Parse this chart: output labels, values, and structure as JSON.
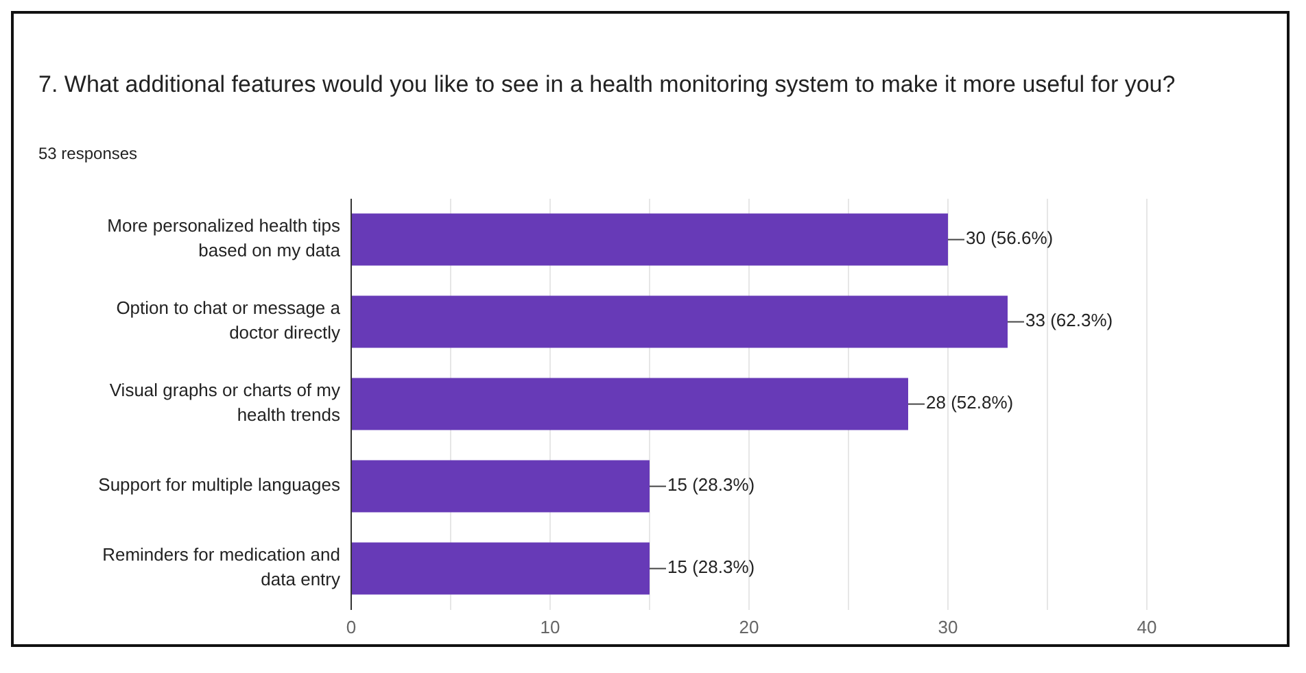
{
  "chart_data": {
    "type": "bar",
    "orientation": "horizontal",
    "title": "7. What additional features would you like to see in a  health monitoring system to make it more useful for you?",
    "subtitle": "53 responses",
    "categories": [
      "More personalized health tips based on my data",
      "Option to chat or message a doctor directly",
      "Visual graphs or charts of my health trends",
      "Support for multiple languages",
      "Reminders for medication and data entry"
    ],
    "values": [
      30,
      33,
      28,
      15,
      15
    ],
    "value_labels": [
      "30 (56.6%)",
      "33 (62.3%)",
      "28 (52.8%)",
      "15 (28.3%)",
      "15 (28.3%)"
    ],
    "color": "#673ab7",
    "xlim": [
      0,
      40
    ],
    "xticks": [
      0,
      {
        "value": 5,
        "label": null
      },
      10,
      {
        "value": 15,
        "label": null
      },
      20,
      {
        "value": 25,
        "label": null
      },
      30,
      {
        "value": 35,
        "label": null
      },
      40
    ],
    "grid": "x",
    "legend": false
  }
}
